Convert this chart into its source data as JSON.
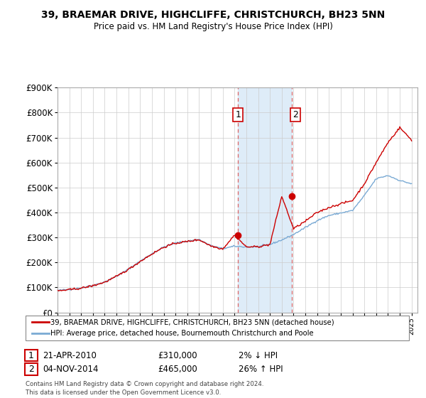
{
  "title": "39, BRAEMAR DRIVE, HIGHCLIFFE, CHRISTCHURCH, BH23 5NN",
  "subtitle": "Price paid vs. HM Land Registry's House Price Index (HPI)",
  "y_min": 0,
  "y_max": 900000,
  "y_ticks": [
    0,
    100000,
    200000,
    300000,
    400000,
    500000,
    600000,
    700000,
    800000,
    900000
  ],
  "y_tick_labels": [
    "£0",
    "£100K",
    "£200K",
    "£300K",
    "£400K",
    "£500K",
    "£600K",
    "£700K",
    "£800K",
    "£900K"
  ],
  "hpi_color": "#7aaad4",
  "price_color": "#cc0000",
  "background_color": "#ffffff",
  "grid_color": "#cccccc",
  "transaction1_x": 2010.3,
  "transaction1_y": 310000,
  "transaction1_label": "1",
  "transaction1_date": "21-APR-2010",
  "transaction1_price": "£310,000",
  "transaction1_hpi": "2% ↓ HPI",
  "transaction2_x": 2014.84,
  "transaction2_y": 465000,
  "transaction2_label": "2",
  "transaction2_date": "04-NOV-2014",
  "transaction2_price": "£465,000",
  "transaction2_hpi": "26% ↑ HPI",
  "legend_line1": "39, BRAEMAR DRIVE, HIGHCLIFFE, CHRISTCHURCH, BH23 5NN (detached house)",
  "legend_line2": "HPI: Average price, detached house, Bournemouth Christchurch and Poole",
  "footer": "Contains HM Land Registry data © Crown copyright and database right 2024.\nThis data is licensed under the Open Government Licence v3.0.",
  "x_min": 1995.0,
  "x_max": 2025.5
}
